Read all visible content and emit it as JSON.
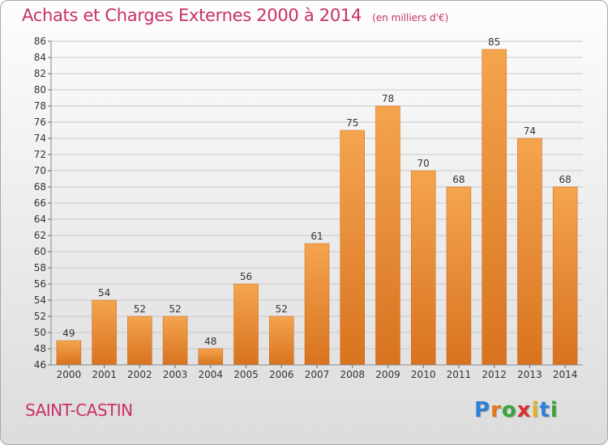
{
  "header": {
    "title": "Achats et Charges Externes 2000 à 2014",
    "unit": "(en milliers d'€)"
  },
  "footer": {
    "commune": "SAINT-CASTIN",
    "logo_letters": [
      "P",
      "r",
      "o",
      "x",
      "i",
      "t",
      "i"
    ],
    "logo_colors": [
      "#2f7fd2",
      "#e07820",
      "#3aa33a",
      "#d83030",
      "#e0b020",
      "#2f7fd2",
      "#3aa33a"
    ]
  },
  "chart_data": {
    "type": "bar",
    "categories": [
      "2000",
      "2001",
      "2002",
      "2003",
      "2004",
      "2005",
      "2006",
      "2007",
      "2008",
      "2009",
      "2010",
      "2011",
      "2012",
      "2013",
      "2014"
    ],
    "values": [
      49,
      54,
      52,
      52,
      48,
      56,
      52,
      61,
      75,
      78,
      70,
      68,
      85,
      74,
      68
    ],
    "title": "Achats et Charges Externes 2000 à 2014",
    "xlabel": "",
    "ylabel": "",
    "ylim": [
      46,
      86
    ],
    "yticks": [
      46,
      48,
      50,
      52,
      54,
      56,
      58,
      60,
      62,
      64,
      66,
      68,
      70,
      72,
      74,
      76,
      78,
      80,
      82,
      84,
      86
    ],
    "grid": true,
    "bar_color_top": "#f5a44e",
    "bar_color_bottom": "#d8731f"
  }
}
